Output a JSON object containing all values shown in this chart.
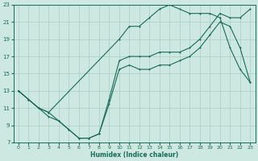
{
  "xlabel": "Humidex (Indice chaleur)",
  "bg_color": "#cce8e0",
  "grid_color": "#aaccc4",
  "line_color": "#1a6b5a",
  "xlim": [
    -0.5,
    23.5
  ],
  "ylim": [
    7,
    23
  ],
  "xticks": [
    0,
    1,
    2,
    3,
    4,
    5,
    6,
    7,
    8,
    9,
    10,
    11,
    12,
    13,
    14,
    15,
    16,
    17,
    18,
    19,
    20,
    21,
    22,
    23
  ],
  "yticks": [
    7,
    9,
    11,
    13,
    15,
    17,
    19,
    21,
    23
  ],
  "line1_x": [
    0,
    1,
    2,
    3,
    4,
    5,
    6,
    7,
    8,
    9,
    10,
    11,
    12,
    13,
    14,
    15,
    16,
    17,
    18,
    19,
    20,
    21,
    22,
    23
  ],
  "line1_y": [
    13,
    12,
    11,
    10,
    9.5,
    8.5,
    7.5,
    7.5,
    8.0,
    11.5,
    15.5,
    16.0,
    15.5,
    15.5,
    16.0,
    16.0,
    16.5,
    17.0,
    18.0,
    19.5,
    21.0,
    20.5,
    18.0,
    14.0
  ],
  "line2_x": [
    0,
    1,
    2,
    3,
    10,
    11,
    12,
    13,
    14,
    15,
    16,
    17,
    18,
    19,
    20,
    21,
    22,
    23
  ],
  "line2_y": [
    13,
    12,
    11,
    10.5,
    19.0,
    20.5,
    20.5,
    21.5,
    22.5,
    23.0,
    22.5,
    22.0,
    22.0,
    22.0,
    21.5,
    18.0,
    15.5,
    14.0
  ],
  "line3_x": [
    0,
    1,
    2,
    3,
    4,
    5,
    6,
    7,
    8,
    9,
    10,
    11,
    12,
    13,
    14,
    15,
    16,
    17,
    18,
    19,
    20,
    21,
    22,
    23
  ],
  "line3_y": [
    13,
    12,
    11,
    10.5,
    9.5,
    8.5,
    7.5,
    7.5,
    8.0,
    12.0,
    16.5,
    17.0,
    17.0,
    17.0,
    17.5,
    17.5,
    17.5,
    18.0,
    19.0,
    20.5,
    22.0,
    21.5,
    21.5,
    22.5
  ]
}
